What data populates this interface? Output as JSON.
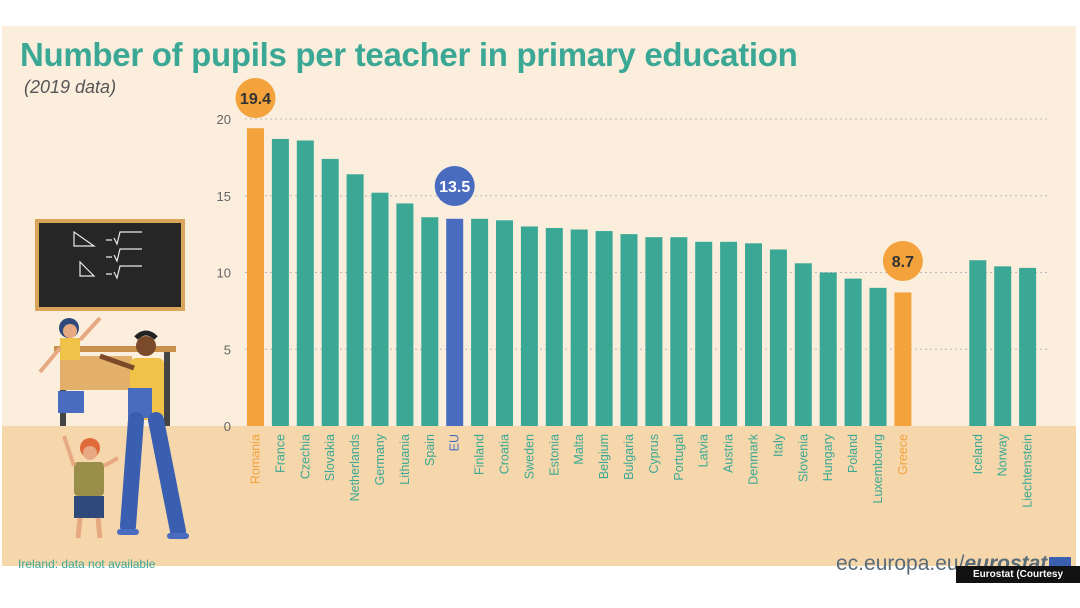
{
  "title": "Number of pupils per teacher in primary education",
  "subtitle": "(2019 data)",
  "footnote": "Ireland: data not available",
  "source": {
    "domain": "ec.europa.eu/",
    "brand": "eurostat"
  },
  "credit": "Eurostat (Courtesy Photo)",
  "colors": {
    "default": "#3aa895",
    "highlight": "#f3a23c",
    "eu": "#4a6cc0",
    "title": "#3aa895"
  },
  "chart_data": {
    "type": "bar",
    "title": "Number of pupils per teacher in primary education",
    "subtitle": "(2019 data)",
    "xlabel": "",
    "ylabel": "",
    "ylim": [
      0,
      20
    ],
    "yticks": [
      0,
      5,
      10,
      15,
      20
    ],
    "grid": true,
    "categories": [
      "Romania",
      "France",
      "Czechia",
      "Slovakia",
      "Netherlands",
      "Germany",
      "Lithuania",
      "Spain",
      "EU",
      "Finland",
      "Croatia",
      "Sweden",
      "Estonia",
      "Malta",
      "Belgium",
      "Bulgaria",
      "Cyprus",
      "Portugal",
      "Latvia",
      "Austria",
      "Denmark",
      "Italy",
      "Slovenia",
      "Hungary",
      "Poland",
      "Luxembourg",
      "Greece",
      "Iceland",
      "Norway",
      "Liechtenstein"
    ],
    "values": [
      19.4,
      18.7,
      18.6,
      17.4,
      16.4,
      15.2,
      14.5,
      13.6,
      13.5,
      13.5,
      13.4,
      13.0,
      12.9,
      12.8,
      12.7,
      12.5,
      12.3,
      12.3,
      12.0,
      12.0,
      11.9,
      11.5,
      10.6,
      10.0,
      9.6,
      9.0,
      8.7,
      10.8,
      10.4,
      10.3
    ],
    "highlight": {
      "Romania": "highlight",
      "EU": "eu",
      "Greece": "highlight"
    },
    "data_labels": {
      "Romania": "19.4",
      "EU": "13.5",
      "Greece": "8.7"
    }
  }
}
